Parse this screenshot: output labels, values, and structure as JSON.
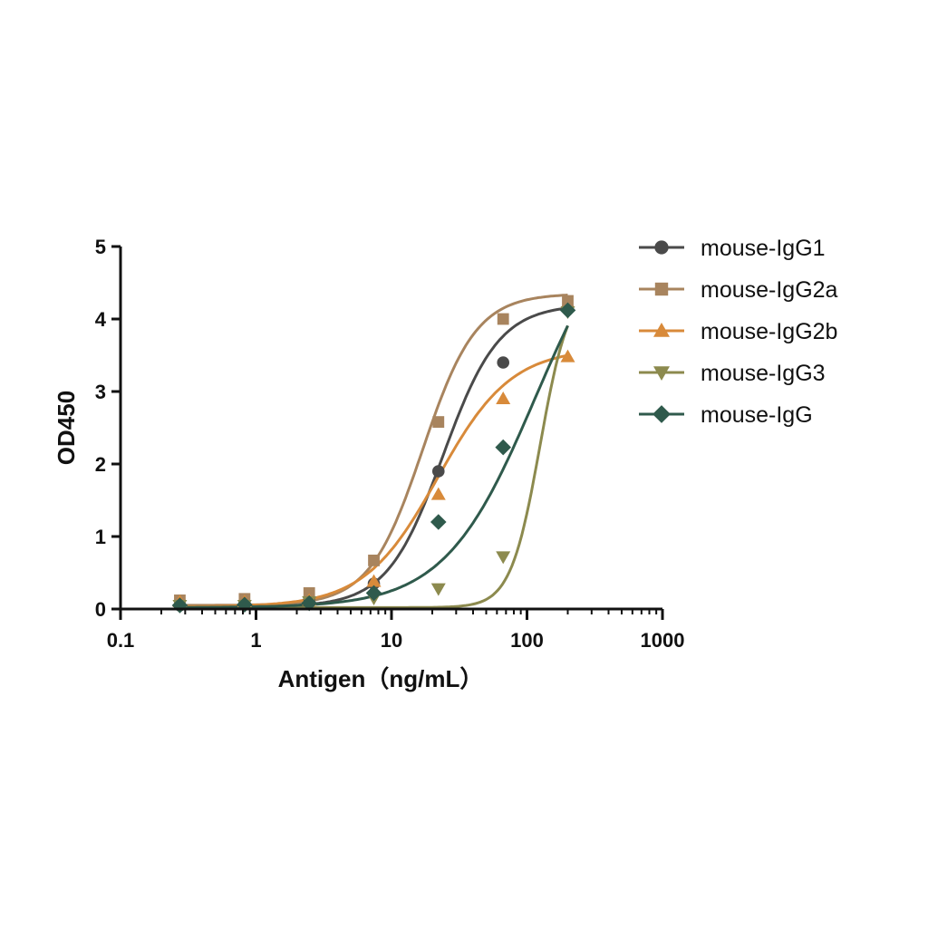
{
  "chart_data": {
    "type": "scatter",
    "title": "",
    "xlabel": "Antigen（ng/mL）",
    "ylabel": "OD450",
    "xscale": "log",
    "xlim": [
      0.1,
      1000
    ],
    "ylim": [
      0,
      5
    ],
    "xticks": [
      "0.1",
      "1",
      "10",
      "100",
      "1000"
    ],
    "xtick_values": [
      0.1,
      1,
      10,
      100,
      1000
    ],
    "yticks": [
      "0",
      "1",
      "2",
      "3",
      "4",
      "5"
    ],
    "ytick_values": [
      0,
      1,
      2,
      3,
      4,
      5
    ],
    "grid": false,
    "legend_position": "right",
    "series": [
      {
        "name": "mouse-IgG1",
        "color": "#4a4a4a",
        "marker": "circle",
        "x": [
          0.274,
          0.823,
          2.47,
          7.41,
          22.2,
          66.7,
          200
        ],
        "y": [
          0.05,
          0.08,
          0.15,
          0.35,
          1.9,
          3.4,
          4.15
        ],
        "fit": {
          "bottom": 0.03,
          "top": 4.2,
          "ec50": 24,
          "hill": 2.1
        }
      },
      {
        "name": "mouse-IgG2a",
        "color": "#a8845e",
        "marker": "square",
        "x": [
          0.274,
          0.823,
          2.47,
          7.41,
          22.2,
          66.7,
          200
        ],
        "y": [
          0.12,
          0.14,
          0.22,
          0.67,
          2.58,
          4.0,
          4.25
        ],
        "fit": {
          "bottom": 0.05,
          "top": 4.35,
          "ec50": 17,
          "hill": 2.2
        }
      },
      {
        "name": "mouse-IgG2b",
        "color": "#d88a3a",
        "marker": "triangle-up",
        "x": [
          0.274,
          0.823,
          2.47,
          7.41,
          22.2,
          66.7,
          200
        ],
        "y": [
          0.1,
          0.1,
          0.12,
          0.38,
          1.58,
          2.9,
          3.48
        ],
        "fit": {
          "bottom": 0.03,
          "top": 3.6,
          "ec50": 22,
          "hill": 1.6
        }
      },
      {
        "name": "mouse-IgG3",
        "color": "#8c8a4e",
        "marker": "triangle-down",
        "x": [
          0.274,
          0.823,
          2.47,
          7.41,
          22.2,
          66.7,
          200
        ],
        "y": [
          0.05,
          0.05,
          0.1,
          0.15,
          0.28,
          0.72,
          4.1
        ],
        "fit": {
          "bottom": 0.02,
          "top": 4.5,
          "ec50": 125,
          "hill": 4.0
        }
      },
      {
        "name": "mouse-IgG",
        "color": "#2f5a4c",
        "marker": "diamond",
        "x": [
          0.274,
          0.823,
          2.47,
          7.41,
          22.2,
          66.7,
          200
        ],
        "y": [
          0.05,
          0.06,
          0.08,
          0.22,
          1.2,
          2.23,
          4.12
        ],
        "fit": {
          "bottom": 0.02,
          "top": 5.8,
          "ec50": 115,
          "hill": 1.3
        }
      }
    ]
  }
}
